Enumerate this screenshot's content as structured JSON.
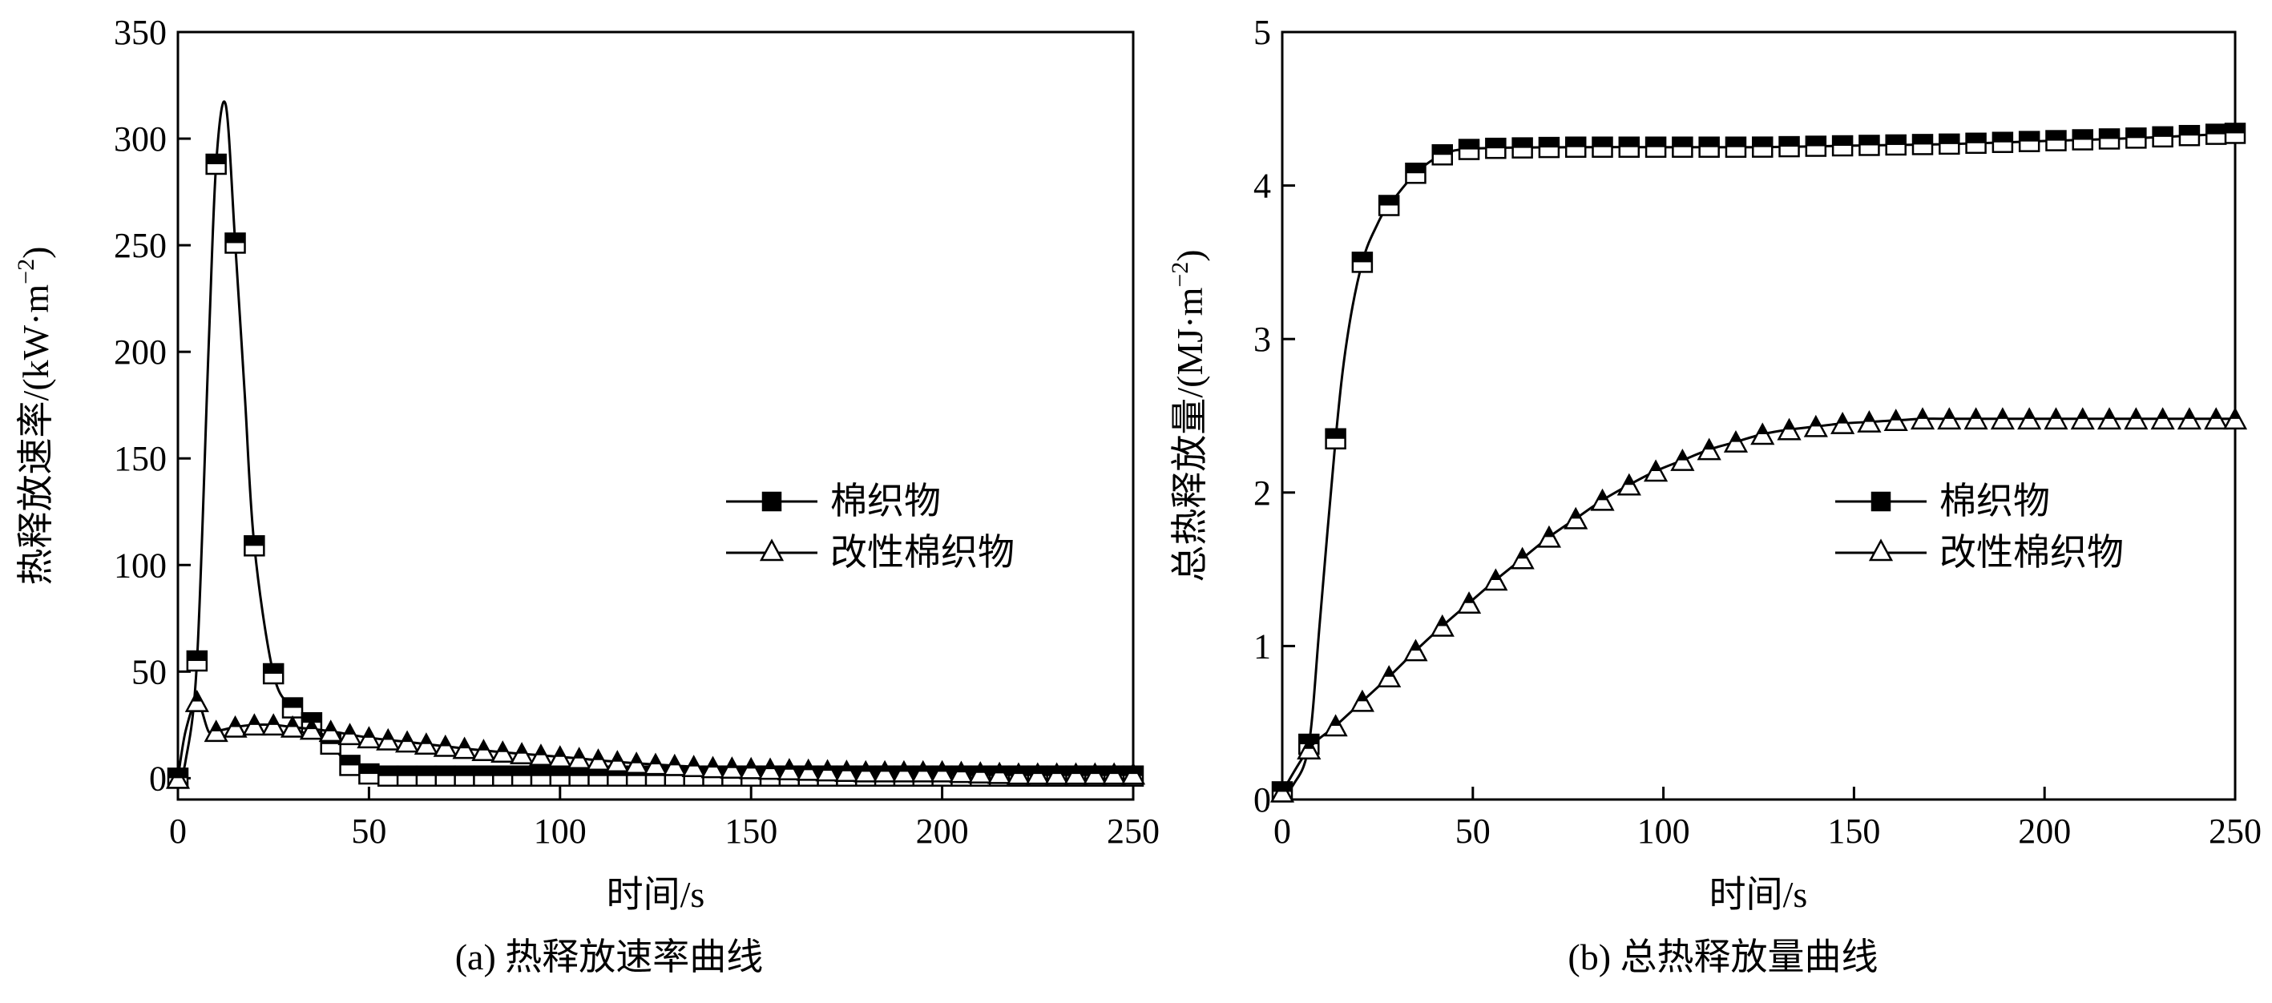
{
  "chart_data": [
    {
      "type": "line",
      "caption": "(a) 热释放速率曲线",
      "xlabel": "时间/s",
      "ylabel": "热释放速率/(kW·m",
      "ylabel_sup": "−2",
      "ylabel_close": ")",
      "xlim": [
        0,
        250
      ],
      "ylim": [
        -10,
        350
      ],
      "xticks": [
        0,
        50,
        100,
        150,
        200,
        250
      ],
      "yticks": [
        0,
        50,
        100,
        150,
        200,
        250,
        300,
        350
      ],
      "grid": false,
      "legend_position": "center-right",
      "series": [
        {
          "name": "棉织物",
          "marker": "square",
          "x": [
            0,
            2,
            5,
            8,
            10,
            12.5,
            15,
            17.5,
            20,
            25,
            30,
            35,
            40,
            45,
            50,
            55,
            60,
            70,
            80,
            90,
            100,
            110,
            120,
            130,
            140,
            150,
            160,
            170,
            180,
            190,
            200,
            210,
            220,
            230,
            240,
            250
          ],
          "y": [
            0,
            8,
            55,
            200,
            288,
            316,
            251,
            180,
            109,
            49,
            33,
            26,
            16,
            6,
            2,
            1,
            1,
            1,
            1,
            1,
            1,
            1,
            1,
            1,
            1,
            1,
            1,
            1,
            1,
            1,
            1,
            1,
            1,
            1,
            1,
            1
          ],
          "marker_x": [
            0,
            5,
            10,
            15,
            20,
            25,
            30,
            35,
            40,
            45,
            50,
            55,
            60,
            65,
            70,
            75,
            80,
            85,
            90,
            95,
            100,
            105,
            110,
            115,
            120,
            125,
            130,
            135,
            140,
            145,
            150,
            155,
            160,
            165,
            170,
            175,
            180,
            185,
            190,
            195,
            200,
            205,
            210,
            215,
            220,
            225,
            230,
            235,
            240,
            245,
            250
          ]
        },
        {
          "name": "改性棉织物",
          "marker": "triangle",
          "x": [
            0,
            2,
            5,
            8,
            10,
            15,
            20,
            25,
            30,
            40,
            50,
            60,
            80,
            100,
            120,
            140,
            160,
            180,
            200,
            220,
            250
          ],
          "y": [
            0,
            22,
            36,
            22,
            22,
            24,
            25,
            25,
            24,
            22,
            19,
            17,
            13,
            10,
            7,
            5,
            4,
            3,
            3,
            2,
            2
          ],
          "marker_x": [
            0,
            5,
            10,
            15,
            20,
            25,
            30,
            35,
            40,
            45,
            50,
            55,
            60,
            65,
            70,
            75,
            80,
            85,
            90,
            95,
            100,
            105,
            110,
            115,
            120,
            125,
            130,
            135,
            140,
            145,
            150,
            155,
            160,
            165,
            170,
            175,
            180,
            185,
            190,
            195,
            200,
            205,
            210,
            215,
            220,
            225,
            230,
            235,
            240,
            245,
            250
          ]
        }
      ]
    },
    {
      "type": "line",
      "caption": "(b) 总热释放量曲线",
      "xlabel": "时间/s",
      "ylabel": "总热释放量/(MJ·m",
      "ylabel_sup": "−2",
      "ylabel_close": ")",
      "xlim": [
        0,
        250
      ],
      "ylim": [
        0,
        5
      ],
      "xticks": [
        0,
        50,
        100,
        150,
        200,
        250
      ],
      "yticks": [
        0,
        1,
        2,
        3,
        4,
        5
      ],
      "grid": false,
      "legend_position": "center-right",
      "series": [
        {
          "name": "棉织物",
          "marker": "square",
          "x": [
            0,
            3,
            7,
            10,
            14,
            17,
            21,
            25,
            28,
            35,
            42,
            50,
            75,
            100,
            125,
            150,
            175,
            200,
            225,
            250
          ],
          "y": [
            0.05,
            0.1,
            0.36,
            1.2,
            2.35,
            3.0,
            3.5,
            3.75,
            3.87,
            4.08,
            4.2,
            4.24,
            4.25,
            4.25,
            4.25,
            4.26,
            4.27,
            4.29,
            4.31,
            4.34
          ],
          "marker_x": [
            0,
            7,
            14,
            21,
            28,
            35,
            42,
            49,
            56,
            63,
            70,
            77,
            84,
            91,
            98,
            105,
            112,
            119,
            126,
            133,
            140,
            147,
            154,
            161,
            168,
            175,
            182,
            189,
            196,
            203,
            210,
            217,
            224,
            231,
            238,
            245,
            250
          ]
        },
        {
          "name": "改性棉织物",
          "marker": "triangle",
          "x": [
            0,
            7,
            14,
            21,
            28,
            35,
            42,
            49,
            56,
            63,
            70,
            77,
            84,
            91,
            98,
            105,
            112,
            119,
            126,
            133,
            140,
            147,
            154,
            161,
            168,
            175,
            182,
            189,
            196,
            203,
            210,
            217,
            224,
            231,
            238,
            245,
            250
          ],
          "y": [
            0.05,
            0.33,
            0.48,
            0.64,
            0.8,
            0.97,
            1.13,
            1.28,
            1.43,
            1.57,
            1.71,
            1.83,
            1.95,
            2.05,
            2.14,
            2.21,
            2.28,
            2.33,
            2.38,
            2.41,
            2.43,
            2.45,
            2.46,
            2.47,
            2.48,
            2.48,
            2.48,
            2.48,
            2.48,
            2.48,
            2.48,
            2.48,
            2.48,
            2.48,
            2.48,
            2.48,
            2.48
          ],
          "marker_x": [
            0,
            7,
            14,
            21,
            28,
            35,
            42,
            49,
            56,
            63,
            70,
            77,
            84,
            91,
            98,
            105,
            112,
            119,
            126,
            133,
            140,
            147,
            154,
            161,
            168,
            175,
            182,
            189,
            196,
            203,
            210,
            217,
            224,
            231,
            238,
            245,
            250
          ]
        }
      ]
    }
  ]
}
